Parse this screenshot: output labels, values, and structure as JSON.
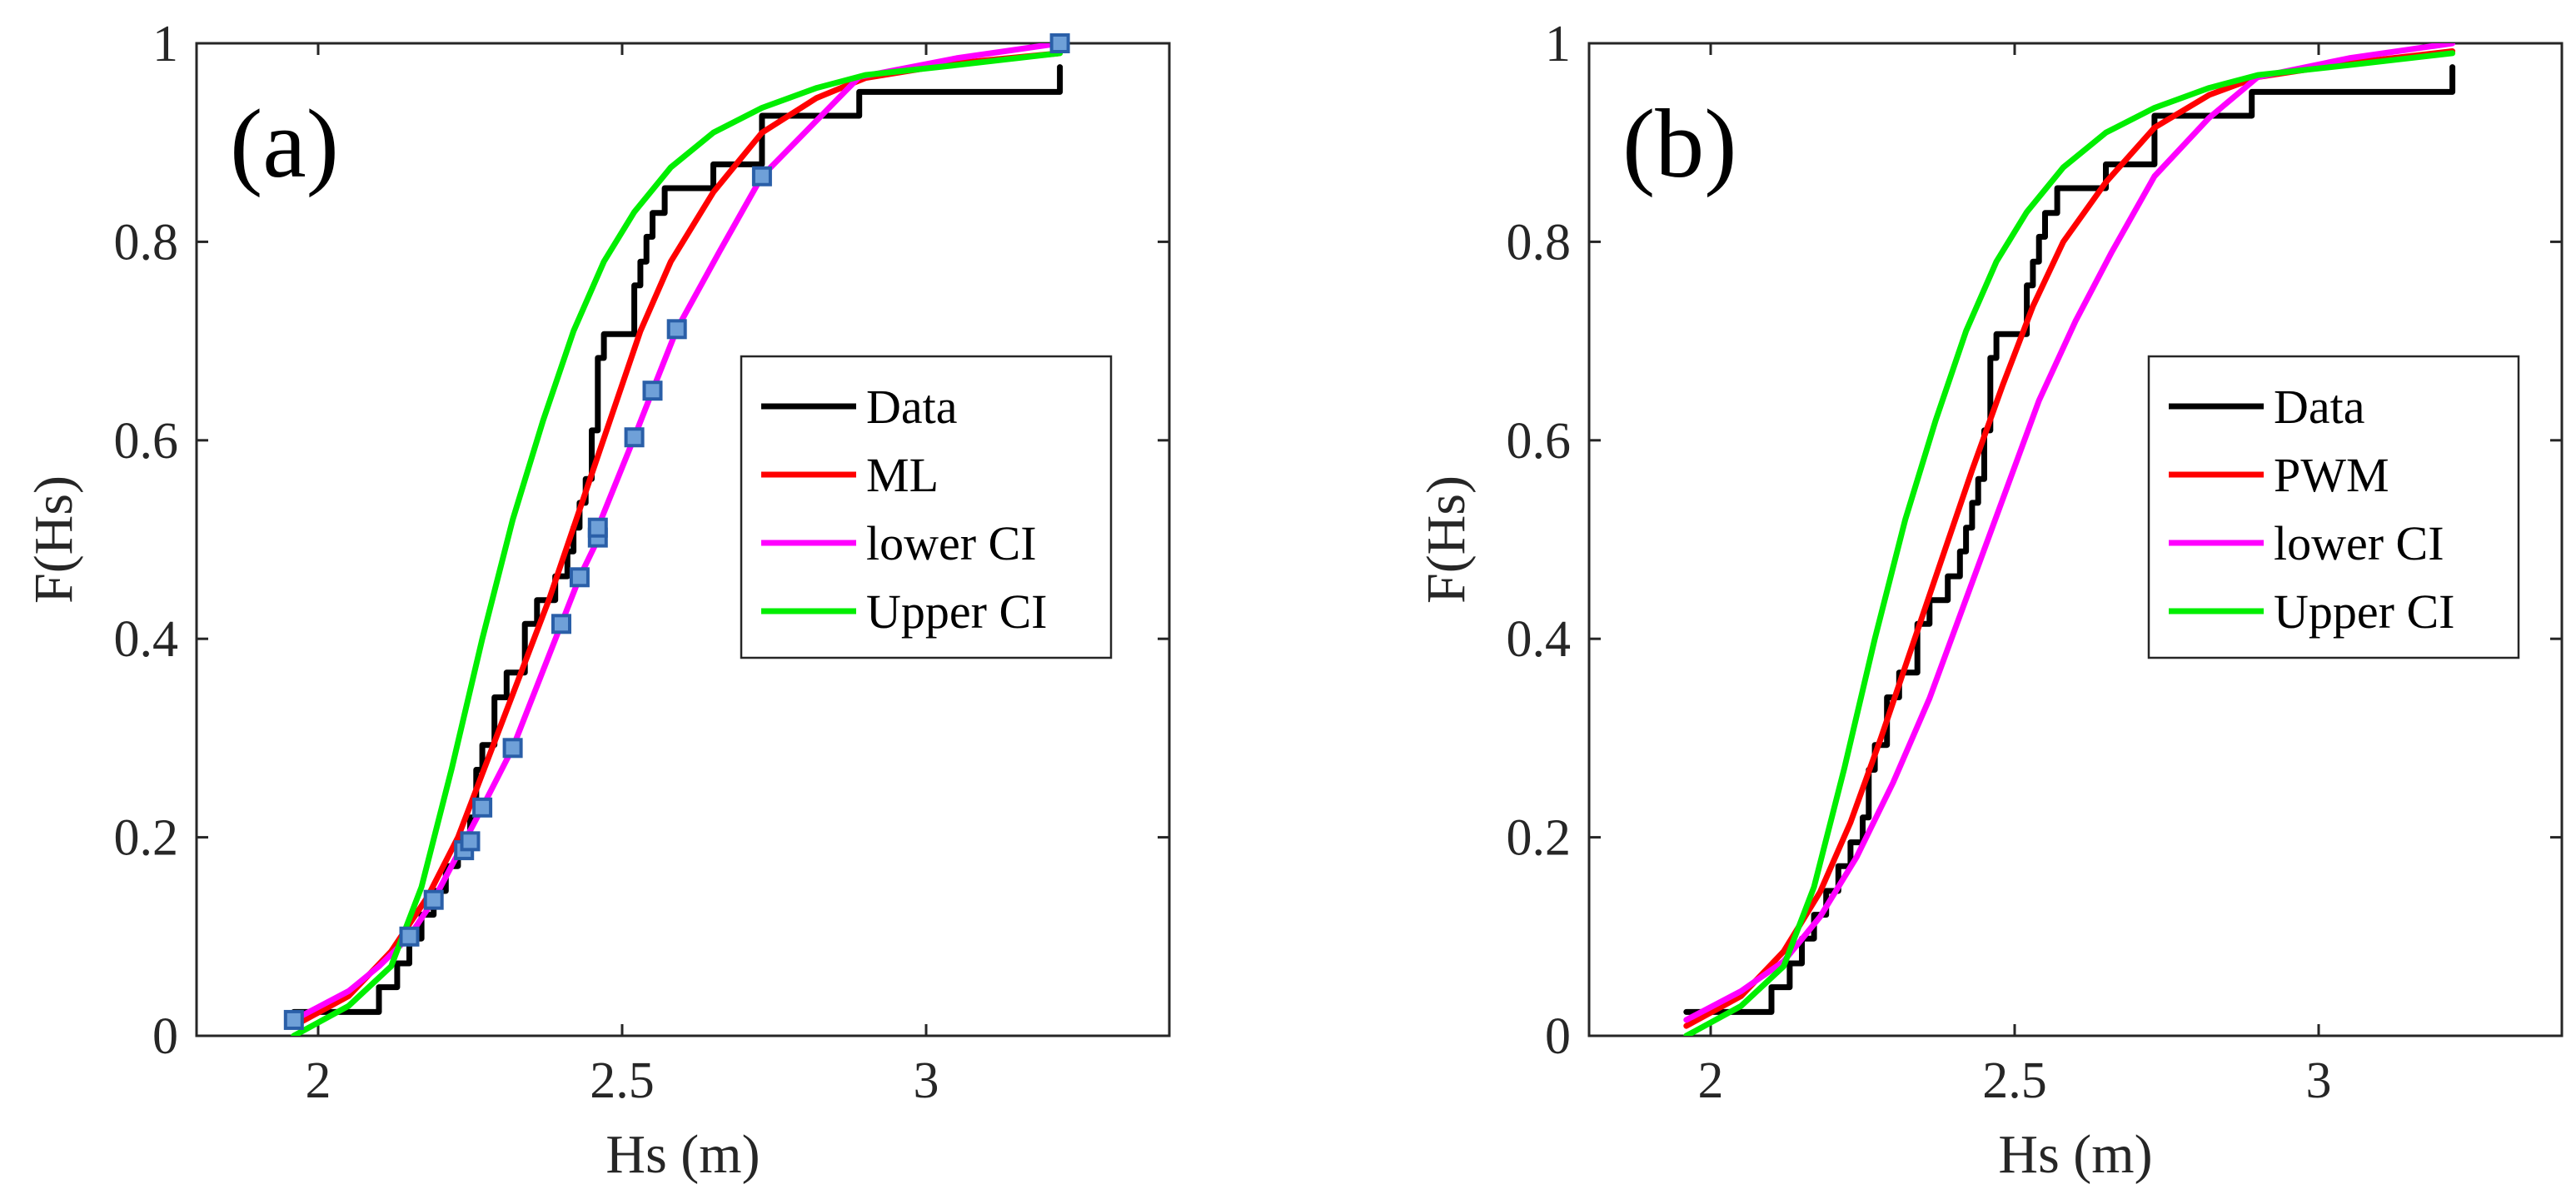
{
  "chart_data": [
    {
      "type": "line",
      "panel_label": "(a)",
      "xlabel": "Hs (m)",
      "ylabel": "F(Hs)",
      "xlim": [
        1.8,
        3.4
      ],
      "ylim": [
        0,
        1
      ],
      "x_ticks": [
        2,
        2.5,
        3
      ],
      "x_tick_labels": [
        "2",
        "2.5",
        "3"
      ],
      "y_ticks": [
        0,
        0.2,
        0.4,
        0.6,
        0.8,
        1
      ],
      "y_tick_labels": [
        "0",
        "0.2",
        "0.4",
        "0.6",
        "0.8",
        "1"
      ],
      "grid": false,
      "legend_position": "right",
      "series": [
        {
          "name": "Data",
          "color": "#000000",
          "style": "step",
          "x": [
            1.96,
            2.1,
            2.1,
            2.13,
            2.13,
            2.15,
            2.15,
            2.17,
            2.17,
            2.19,
            2.19,
            2.21,
            2.21,
            2.23,
            2.23,
            2.25,
            2.25,
            2.26,
            2.26,
            2.27,
            2.27,
            2.29,
            2.29,
            2.31,
            2.31,
            2.34,
            2.34,
            2.36,
            2.36,
            2.39,
            2.39,
            2.41,
            2.41,
            2.42,
            2.42,
            2.43,
            2.43,
            2.44,
            2.44,
            2.45,
            2.45,
            2.46,
            2.46,
            2.47,
            2.47,
            2.52,
            2.52,
            2.53,
            2.53,
            2.54,
            2.54,
            2.55,
            2.55,
            2.57,
            2.57,
            2.59,
            2.59,
            2.65,
            2.65,
            2.73,
            2.73,
            2.89,
            2.89,
            3.22,
            3.22
          ],
          "y": [
            0.024,
            0.024,
            0.049,
            0.049,
            0.073,
            0.073,
            0.098,
            0.098,
            0.122,
            0.122,
            0.146,
            0.146,
            0.171,
            0.171,
            0.195,
            0.195,
            0.22,
            0.22,
            0.268,
            0.268,
            0.293,
            0.293,
            0.341,
            0.341,
            0.366,
            0.366,
            0.415,
            0.415,
            0.439,
            0.439,
            0.463,
            0.463,
            0.488,
            0.488,
            0.512,
            0.512,
            0.537,
            0.537,
            0.561,
            0.561,
            0.61,
            0.61,
            0.683,
            0.683,
            0.707,
            0.707,
            0.756,
            0.756,
            0.78,
            0.78,
            0.805,
            0.805,
            0.829,
            0.829,
            0.854,
            0.854,
            0.854,
            0.854,
            0.878,
            0.878,
            0.927,
            0.927,
            0.951,
            0.951,
            0.976
          ]
        },
        {
          "name": "ML",
          "color": "#ff0000",
          "x": [
            1.96,
            2.05,
            2.12,
            2.18,
            2.23,
            2.28,
            2.33,
            2.38,
            2.43,
            2.48,
            2.53,
            2.58,
            2.65,
            2.73,
            2.82,
            2.9,
            3.05,
            3.22
          ],
          "y": [
            0.01,
            0.04,
            0.085,
            0.14,
            0.2,
            0.28,
            0.36,
            0.44,
            0.53,
            0.62,
            0.71,
            0.78,
            0.85,
            0.91,
            0.945,
            0.965,
            0.98,
            0.99
          ]
        },
        {
          "name": "lower CI",
          "color": "#ff00ff",
          "x": [
            1.96,
            2.05,
            2.1,
            2.15,
            2.19,
            2.24,
            2.27,
            2.32,
            2.4,
            2.43,
            2.46,
            2.46,
            2.52,
            2.55,
            2.59,
            2.66,
            2.73,
            2.89,
            3.05,
            3.22
          ],
          "y": [
            0.016,
            0.045,
            0.07,
            0.1,
            0.137,
            0.195,
            0.23,
            0.29,
            0.415,
            0.462,
            0.5,
            0.512,
            0.603,
            0.65,
            0.712,
            0.79,
            0.866,
            0.966,
            0.985,
            1.0
          ]
        },
        {
          "name": "Upper CI",
          "color": "#00ee00",
          "x": [
            1.96,
            2.05,
            2.12,
            2.17,
            2.22,
            2.27,
            2.32,
            2.37,
            2.42,
            2.47,
            2.52,
            2.58,
            2.65,
            2.73,
            2.82,
            2.9,
            3.05,
            3.22
          ],
          "y": [
            0.0,
            0.03,
            0.07,
            0.15,
            0.27,
            0.4,
            0.52,
            0.62,
            0.71,
            0.78,
            0.83,
            0.875,
            0.91,
            0.935,
            0.955,
            0.968,
            0.978,
            0.99
          ]
        }
      ],
      "markers": {
        "color": "#6fa0d8",
        "edge": "#2a5fa8",
        "x": [
          1.96,
          2.15,
          2.19,
          2.24,
          2.25,
          2.27,
          2.32,
          2.4,
          2.43,
          2.46,
          2.46,
          2.52,
          2.55,
          2.59,
          2.73,
          3.22
        ],
        "y": [
          0.016,
          0.1,
          0.137,
          0.187,
          0.196,
          0.23,
          0.29,
          0.415,
          0.462,
          0.502,
          0.512,
          0.603,
          0.65,
          0.712,
          0.866,
          1.0
        ]
      }
    },
    {
      "type": "line",
      "panel_label": "(b)",
      "xlabel": "Hs (m)",
      "ylabel": "F(Hs)",
      "xlim": [
        1.8,
        3.4
      ],
      "ylim": [
        0,
        1
      ],
      "x_ticks": [
        2,
        2.5,
        3
      ],
      "x_tick_labels": [
        "2",
        "2.5",
        "3"
      ],
      "y_ticks": [
        0,
        0.2,
        0.4,
        0.6,
        0.8,
        1
      ],
      "y_tick_labels": [
        "0",
        "0.2",
        "0.4",
        "0.6",
        "0.8",
        "1"
      ],
      "grid": false,
      "legend_position": "right",
      "series": [
        {
          "name": "Data",
          "color": "#000000",
          "style": "step",
          "x": [
            1.96,
            2.1,
            2.1,
            2.13,
            2.13,
            2.15,
            2.15,
            2.17,
            2.17,
            2.19,
            2.19,
            2.21,
            2.21,
            2.23,
            2.23,
            2.25,
            2.25,
            2.26,
            2.26,
            2.27,
            2.27,
            2.29,
            2.29,
            2.31,
            2.31,
            2.34,
            2.34,
            2.36,
            2.36,
            2.39,
            2.39,
            2.41,
            2.41,
            2.42,
            2.42,
            2.43,
            2.43,
            2.44,
            2.44,
            2.45,
            2.45,
            2.46,
            2.46,
            2.47,
            2.47,
            2.52,
            2.52,
            2.53,
            2.53,
            2.54,
            2.54,
            2.55,
            2.55,
            2.57,
            2.57,
            2.59,
            2.59,
            2.65,
            2.65,
            2.73,
            2.73,
            2.89,
            2.89,
            3.22,
            3.22
          ],
          "y": [
            0.024,
            0.024,
            0.049,
            0.049,
            0.073,
            0.073,
            0.098,
            0.098,
            0.122,
            0.122,
            0.146,
            0.146,
            0.171,
            0.171,
            0.195,
            0.195,
            0.22,
            0.22,
            0.268,
            0.268,
            0.293,
            0.293,
            0.341,
            0.341,
            0.366,
            0.366,
            0.415,
            0.415,
            0.439,
            0.439,
            0.463,
            0.463,
            0.488,
            0.488,
            0.512,
            0.512,
            0.537,
            0.537,
            0.561,
            0.561,
            0.61,
            0.61,
            0.683,
            0.683,
            0.707,
            0.707,
            0.756,
            0.756,
            0.78,
            0.78,
            0.805,
            0.805,
            0.829,
            0.829,
            0.854,
            0.854,
            0.854,
            0.854,
            0.878,
            0.878,
            0.927,
            0.927,
            0.951,
            0.951,
            0.976
          ]
        },
        {
          "name": "PWM",
          "color": "#ff0000",
          "x": [
            1.96,
            2.05,
            2.12,
            2.18,
            2.23,
            2.28,
            2.33,
            2.38,
            2.43,
            2.48,
            2.53,
            2.58,
            2.65,
            2.73,
            2.82,
            2.9,
            3.05,
            3.22
          ],
          "y": [
            0.01,
            0.04,
            0.085,
            0.145,
            0.215,
            0.3,
            0.39,
            0.48,
            0.57,
            0.655,
            0.735,
            0.8,
            0.86,
            0.915,
            0.948,
            0.966,
            0.98,
            0.992
          ]
        },
        {
          "name": "lower CI",
          "color": "#ff00ff",
          "x": [
            1.96,
            2.05,
            2.12,
            2.18,
            2.24,
            2.3,
            2.36,
            2.42,
            2.48,
            2.54,
            2.6,
            2.66,
            2.73,
            2.82,
            2.9,
            3.05,
            3.22
          ],
          "y": [
            0.016,
            0.045,
            0.075,
            0.12,
            0.18,
            0.255,
            0.34,
            0.44,
            0.54,
            0.64,
            0.72,
            0.79,
            0.866,
            0.925,
            0.966,
            0.985,
            1.0
          ]
        },
        {
          "name": "Upper CI",
          "color": "#00ee00",
          "x": [
            1.96,
            2.05,
            2.12,
            2.17,
            2.22,
            2.27,
            2.32,
            2.37,
            2.42,
            2.47,
            2.52,
            2.58,
            2.65,
            2.73,
            2.82,
            2.9,
            3.05,
            3.22
          ],
          "y": [
            0.0,
            0.03,
            0.07,
            0.15,
            0.27,
            0.4,
            0.52,
            0.62,
            0.71,
            0.78,
            0.83,
            0.875,
            0.91,
            0.935,
            0.955,
            0.968,
            0.978,
            0.99
          ]
        }
      ],
      "markers": null
    }
  ]
}
